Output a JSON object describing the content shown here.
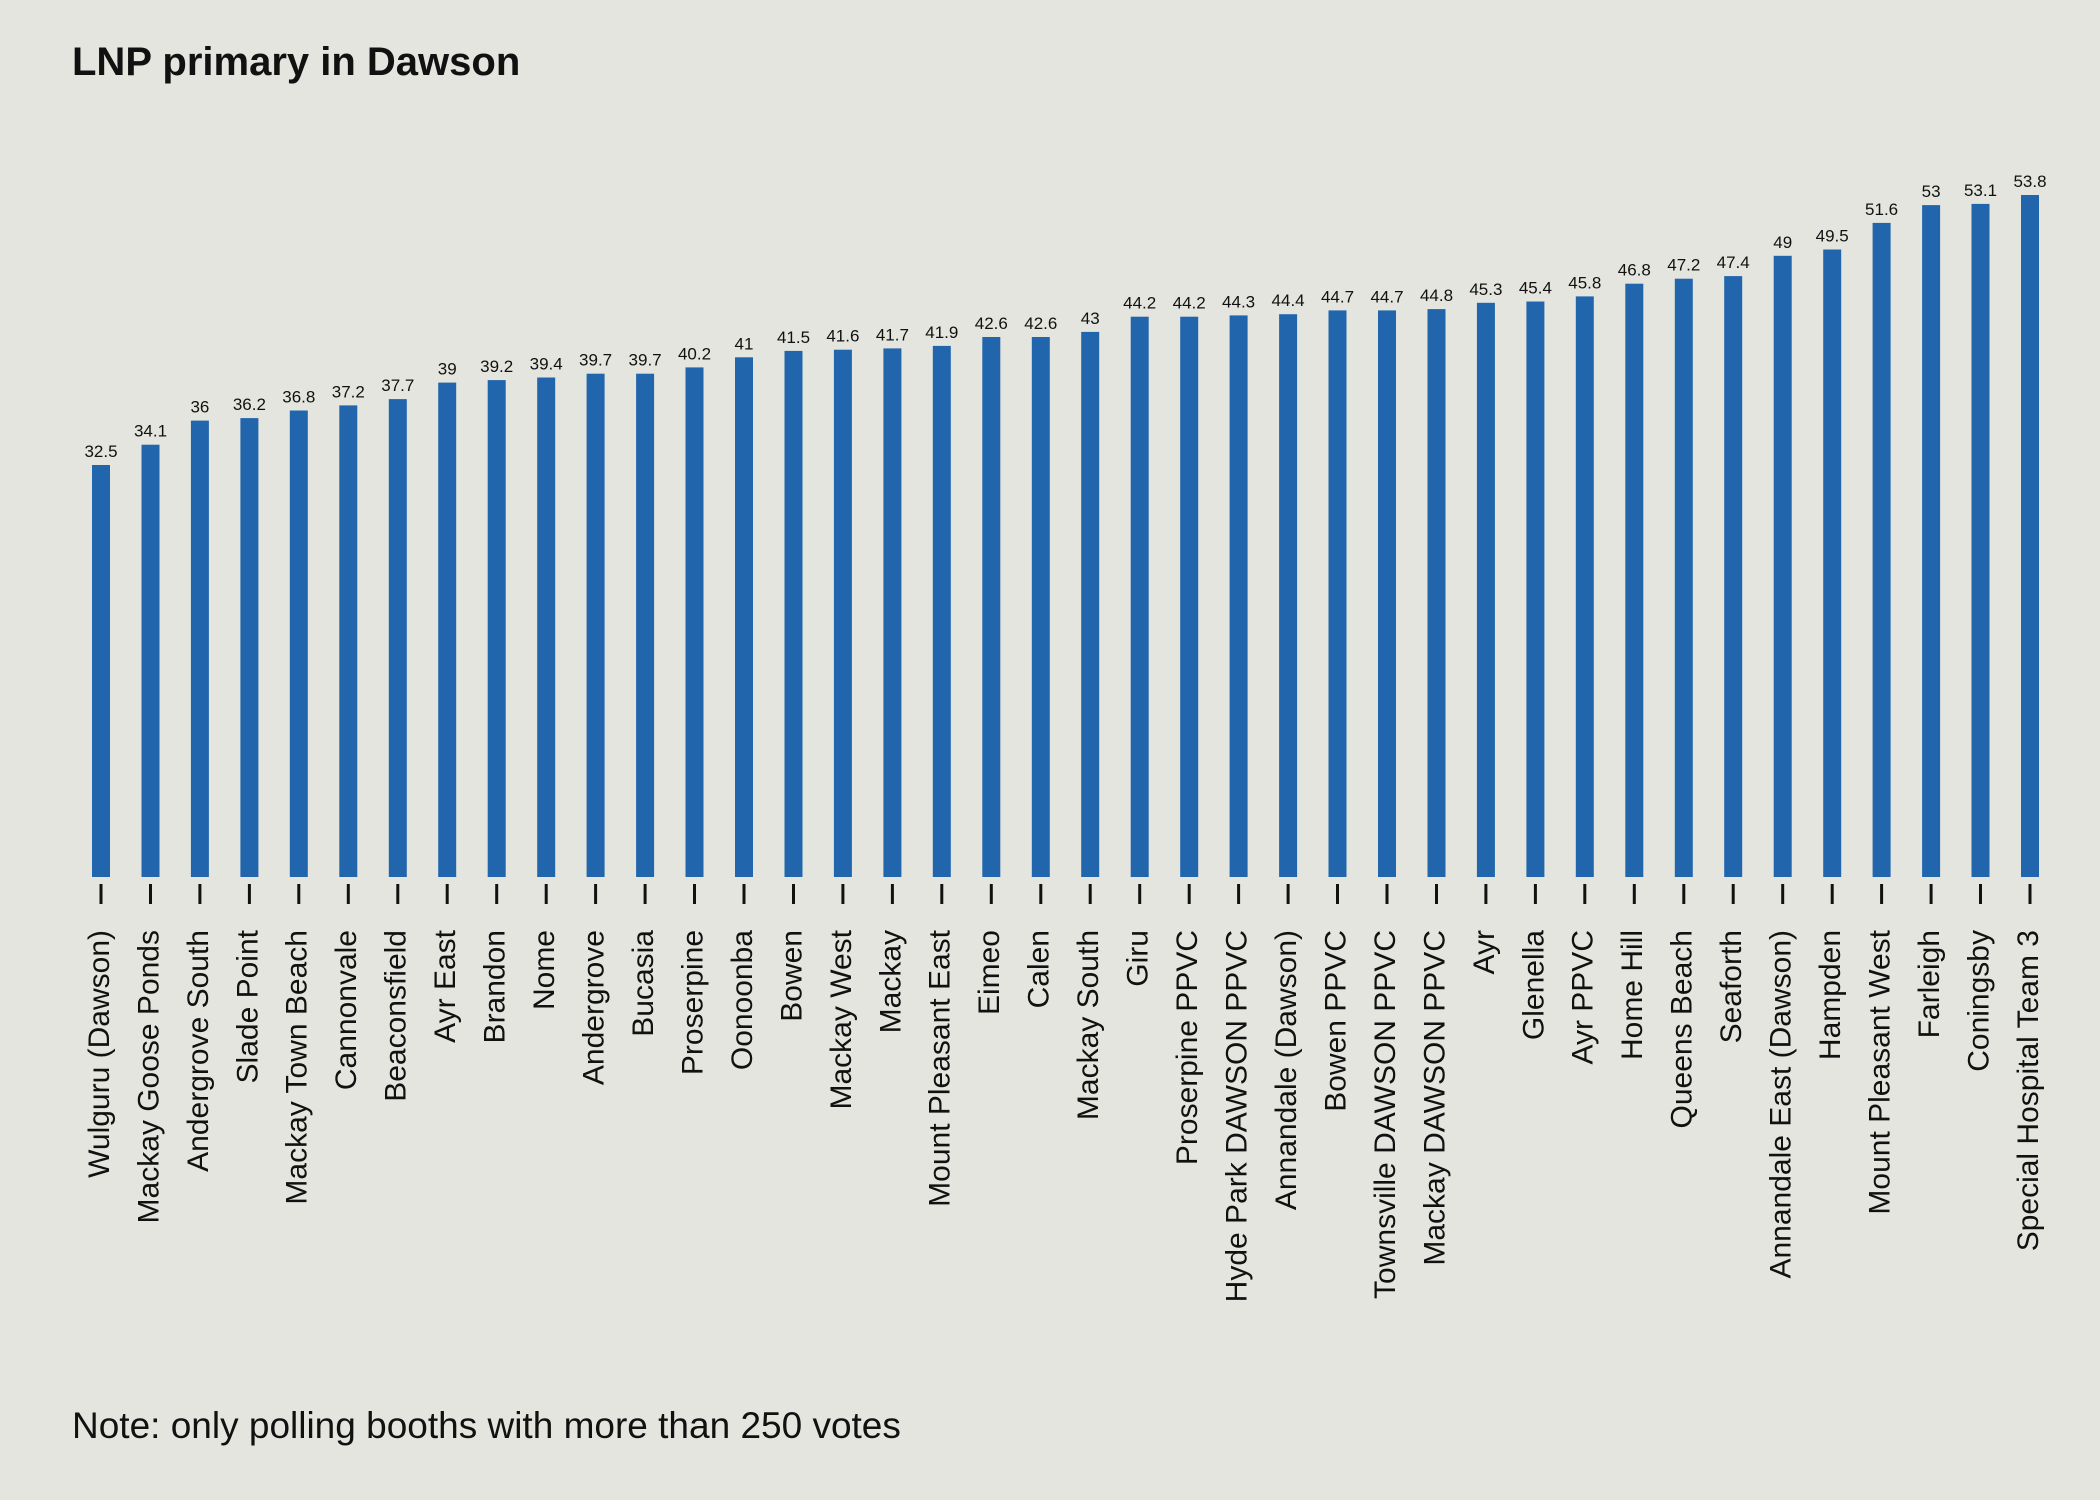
{
  "chart_data": {
    "type": "bar",
    "title": "LNP primary in Dawson",
    "note": "Note: only polling booths with more than 250 votes",
    "xlabel": "",
    "ylabel": "",
    "ylim": [
      0,
      53.8
    ],
    "grid": false,
    "bar_color": "#2166ac",
    "categories": [
      "Wulguru (Dawson)",
      "Mackay Goose Ponds",
      "Andergrove South",
      "Slade Point",
      "Mackay Town Beach",
      "Cannonvale",
      "Beaconsfield",
      "Ayr East",
      "Brandon",
      "Nome",
      "Andergrove",
      "Bucasia",
      "Proserpine",
      "Oonoonba",
      "Bowen",
      "Mackay West",
      "Mackay",
      "Mount Pleasant East",
      "Eimeo",
      "Calen",
      "Mackay South",
      "Giru",
      "Proserpine PPVC",
      "Hyde Park DAWSON PPVC",
      "Annandale (Dawson)",
      "Bowen PPVC",
      "Townsville DAWSON PPVC",
      "Mackay DAWSON PPVC",
      "Ayr",
      "Glenella",
      "Ayr PPVC",
      "Home Hill",
      "Queens Beach",
      "Seaforth",
      "Annandale East (Dawson)",
      "Hampden",
      "Mount Pleasant West",
      "Farleigh",
      "Coningsby",
      "Special Hospital Team 3"
    ],
    "values": [
      32.5,
      34.1,
      36,
      36.2,
      36.8,
      37.2,
      37.7,
      39,
      39.2,
      39.4,
      39.7,
      39.7,
      40.2,
      41,
      41.5,
      41.6,
      41.7,
      41.9,
      42.6,
      42.6,
      43,
      44.2,
      44.2,
      44.3,
      44.4,
      44.7,
      44.7,
      44.8,
      45.3,
      45.4,
      45.8,
      46.8,
      47.2,
      47.4,
      49,
      49.5,
      51.6,
      53,
      53.1,
      53.8
    ]
  }
}
